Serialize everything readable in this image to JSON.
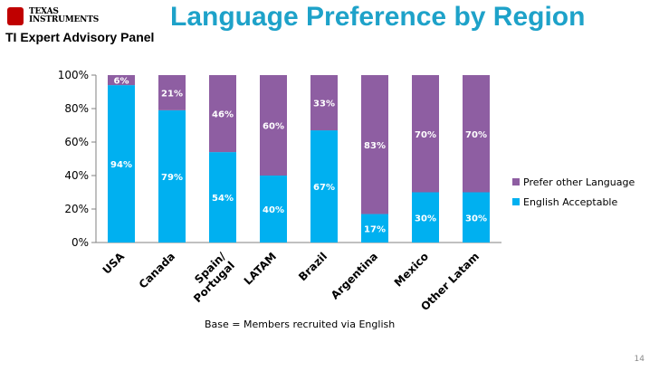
{
  "header": {
    "logo_text": "Texas Instruments",
    "subtitle": "TI Expert Advisory Panel",
    "title": "Language Preference by Region"
  },
  "footer": {
    "base_note": "Base = Members recruited via English",
    "page_number": "14"
  },
  "colors": {
    "title": "#1ea2c9",
    "english": "#00b0f0",
    "other": "#8e5ea2",
    "logo": "#c00000"
  },
  "chart_data": {
    "type": "bar",
    "stacked": true,
    "categories": [
      "USA",
      "Canada",
      "Spain/ Portugal",
      "LATAM",
      "Brazil",
      "Argentina",
      "Mexico",
      "Other Latam"
    ],
    "series": [
      {
        "name": "English Acceptable",
        "values": [
          94,
          79,
          54,
          40,
          67,
          17,
          30,
          30
        ],
        "labels": [
          "94%",
          "79%",
          "54%",
          "40%",
          "67%",
          "17%",
          "30%",
          "30%"
        ]
      },
      {
        "name": "Prefer other Language",
        "values": [
          6,
          21,
          46,
          60,
          33,
          83,
          70,
          70
        ],
        "labels": [
          "6%",
          "21%",
          "46%",
          "60%",
          "33%",
          "83%",
          "70%",
          "70%"
        ]
      }
    ],
    "ylim": [
      0,
      100
    ],
    "yticks": [
      "0%",
      "20%",
      "40%",
      "60%",
      "80%",
      "100%"
    ],
    "legend": [
      "Prefer other Language",
      "English Acceptable"
    ],
    "legend_position": "right",
    "grid": false
  }
}
